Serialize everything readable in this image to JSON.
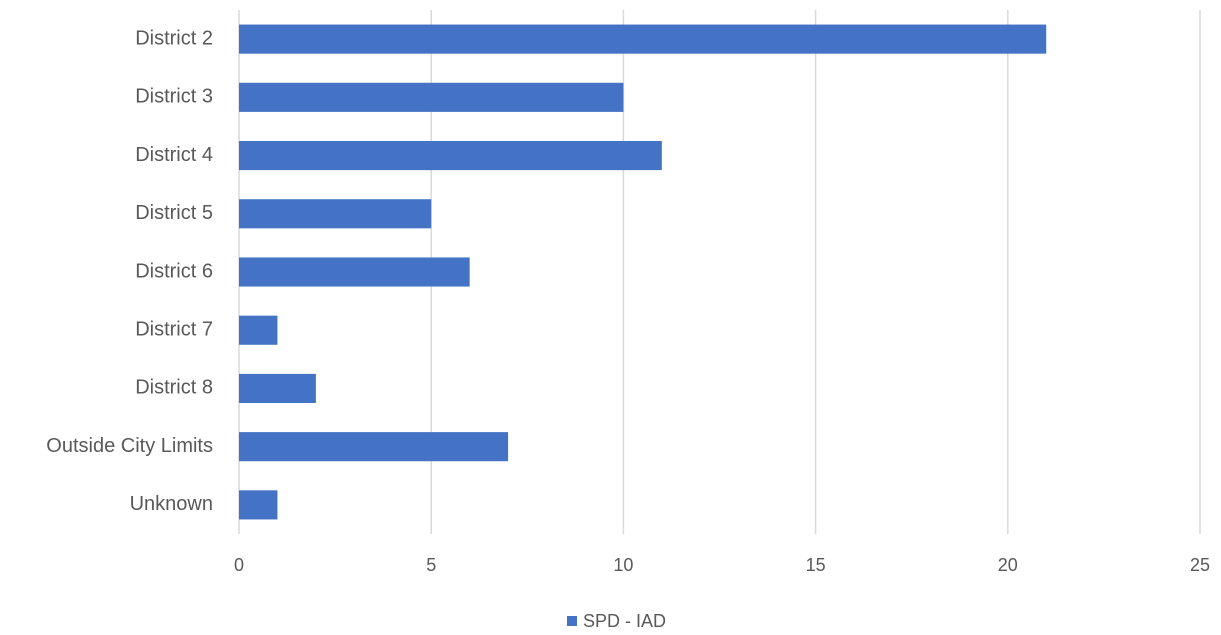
{
  "chart_data": {
    "type": "bar",
    "orientation": "horizontal",
    "categories": [
      "District 2",
      "District 3",
      "District 4",
      "District 5",
      "District 6",
      "District 7",
      "District 8",
      "Outside City Limits",
      "Unknown"
    ],
    "series": [
      {
        "name": "SPD - IAD",
        "color": "#4472c4",
        "values": [
          21,
          10,
          11,
          5,
          6,
          1,
          2,
          7,
          1
        ]
      }
    ],
    "xlim": [
      0,
      25
    ],
    "xticks": [
      0,
      5,
      10,
      15,
      20,
      25
    ],
    "grid": true,
    "legend": "bottom"
  }
}
